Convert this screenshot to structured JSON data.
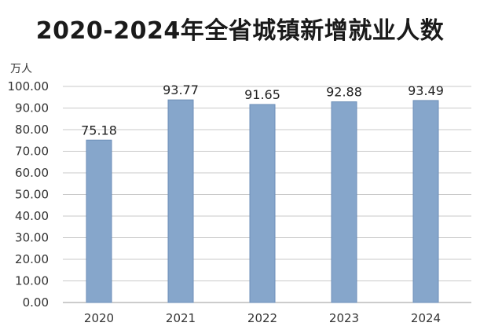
{
  "chart_data": {
    "type": "bar",
    "title": "2020-2024年全省城镇新增就业人数",
    "ylabel": "万人",
    "xlabel": "",
    "categories": [
      "2020",
      "2021",
      "2022",
      "2023",
      "2024"
    ],
    "values": [
      75.18,
      93.77,
      91.65,
      92.88,
      93.49
    ],
    "data_labels": [
      "75.18",
      "93.77",
      "91.65",
      "92.88",
      "93.49"
    ],
    "ylim": [
      0,
      100
    ],
    "yticks": [
      "0.00",
      "10.00",
      "20.00",
      "30.00",
      "40.00",
      "50.00",
      "60.00",
      "70.00",
      "80.00",
      "90.00",
      "100.00"
    ],
    "grid": true,
    "legend": "none",
    "bar_color": "#86a6cb"
  }
}
